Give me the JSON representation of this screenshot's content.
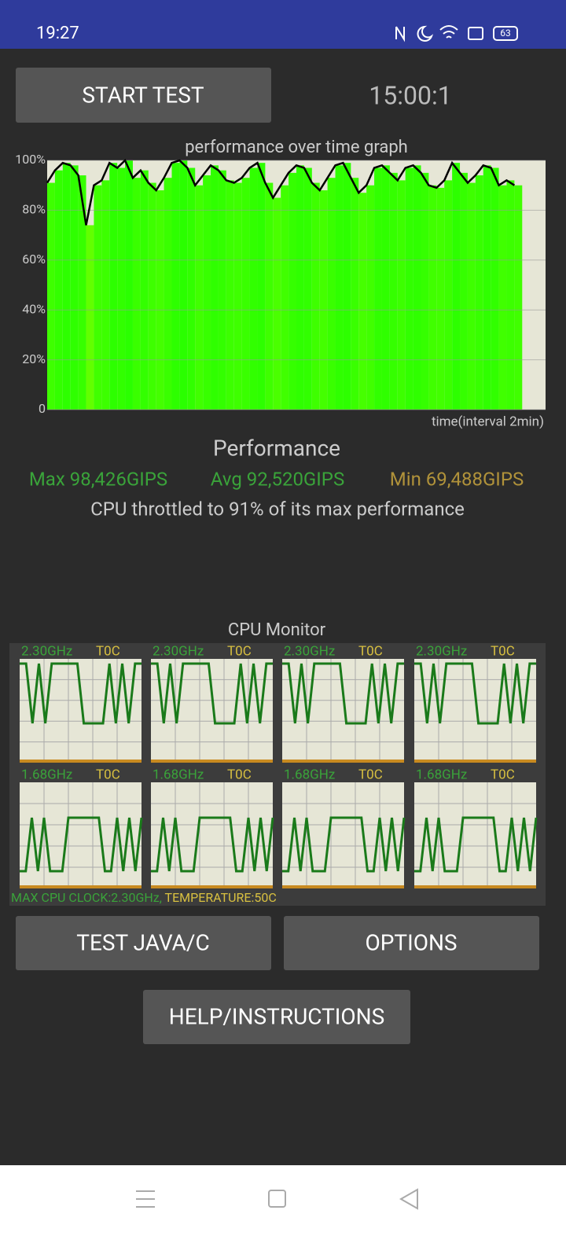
{
  "status_bar": {
    "time": "19:27",
    "battery": "63"
  },
  "buttons": {
    "start": "START TEST",
    "test_java": "TEST JAVA/C",
    "options": "OPTIONS",
    "help": "HELP/INSTRUCTIONS"
  },
  "timer": "15:00:1",
  "graph": {
    "type": "line",
    "title": "performance over time graph",
    "x_label": "time(interval 2min)",
    "xlim": [
      0,
      16
    ],
    "ylim": [
      0,
      100
    ],
    "yticks": [
      {
        "value": 100,
        "label": "100%"
      },
      {
        "value": 80,
        "label": "80%"
      },
      {
        "value": 60,
        "label": "60%"
      },
      {
        "value": 40,
        "label": "40%"
      },
      {
        "value": 20,
        "label": "20%"
      },
      0
    ],
    "grid": true,
    "x": [
      0,
      0.25,
      0.5,
      0.75,
      1,
      1.25,
      1.5,
      1.75,
      2,
      2.25,
      2.5,
      2.75,
      3,
      3.25,
      3.5,
      3.75,
      4,
      4.25,
      4.5,
      4.75,
      5,
      5.25,
      5.5,
      5.75,
      6,
      6.25,
      6.5,
      6.75,
      7,
      7.25,
      7.5,
      7.75,
      8,
      8.25,
      8.5,
      8.75,
      9,
      9.25,
      9.5,
      9.75,
      10,
      10.25,
      10.5,
      10.75,
      11,
      11.25,
      11.5,
      11.75,
      12,
      12.25,
      12.5,
      12.75,
      13,
      13.25,
      13.5,
      13.75,
      14,
      14.25,
      14.5,
      14.75,
      15
    ],
    "values": [
      91,
      96,
      99,
      98,
      94,
      74,
      90,
      92,
      99,
      97,
      100,
      93,
      96,
      91,
      88,
      93,
      99,
      100,
      97,
      90,
      94,
      98,
      96,
      92,
      91,
      93,
      97,
      99,
      91,
      85,
      90,
      95,
      98,
      97,
      91,
      88,
      93,
      98,
      99,
      93,
      87,
      90,
      97,
      98,
      95,
      92,
      97,
      98,
      95,
      90,
      89,
      92,
      99,
      95,
      91,
      94,
      98,
      97,
      90,
      92,
      90
    ],
    "color": "#000000"
  },
  "performance": {
    "heading": "Performance",
    "max": "Max 98,426GIPS",
    "avg": "Avg 92,520GIPS",
    "min": "Min 69,488GIPS",
    "throttle": "CPU throttled to 91% of its max performance"
  },
  "cpu_monitor": {
    "title": "CPU Monitor",
    "cores": [
      {
        "freq": "2.30GHz",
        "temp": "T0C"
      },
      {
        "freq": "2.30GHz",
        "temp": "T0C"
      },
      {
        "freq": "2.30GHz",
        "temp": "T0C"
      },
      {
        "freq": "2.30GHz",
        "temp": "T0C"
      },
      {
        "freq": "1.68GHz",
        "temp": "T0C"
      },
      {
        "freq": "1.68GHz",
        "temp": "T0C"
      },
      {
        "freq": "1.68GHz",
        "temp": "T0C"
      },
      {
        "freq": "1.68GHz",
        "temp": "T0C"
      }
    ],
    "summary_clock": "MAX CPU CLOCK:2.30GHz,",
    "summary_temp": "TEMPERATURE:50C"
  }
}
